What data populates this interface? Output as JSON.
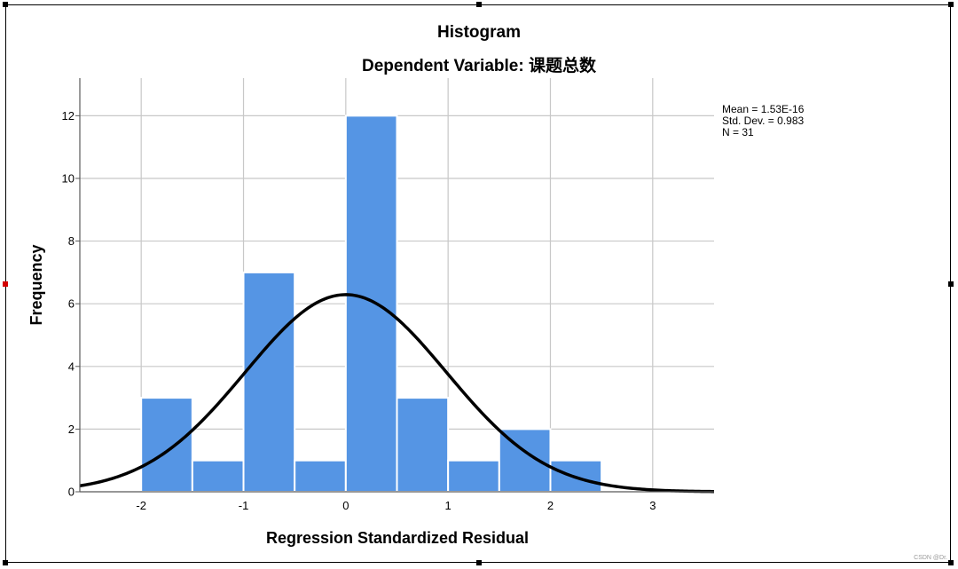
{
  "chart_data": {
    "type": "bar",
    "title": "Histogram",
    "subtitle": "Dependent Variable: 课题总数",
    "xlabel": "Regression Standardized Residual",
    "ylabel": "Frequency",
    "xlim": [
      -2.6,
      3.6
    ],
    "ylim": [
      0,
      13.2
    ],
    "x_ticks": [
      -2,
      -1,
      0,
      1,
      2,
      3
    ],
    "y_ticks": [
      0,
      2,
      4,
      6,
      8,
      10,
      12
    ],
    "grid": true,
    "bins": [
      {
        "x0": -2.0,
        "x1": -1.5,
        "count": 3
      },
      {
        "x0": -1.5,
        "x1": -1.0,
        "count": 1
      },
      {
        "x0": -1.0,
        "x1": -0.5,
        "count": 7
      },
      {
        "x0": -0.5,
        "x1": 0.0,
        "count": 1
      },
      {
        "x0": 0.0,
        "x1": 0.5,
        "count": 12
      },
      {
        "x0": 0.5,
        "x1": 1.0,
        "count": 3
      },
      {
        "x0": 1.0,
        "x1": 1.5,
        "count": 1
      },
      {
        "x0": 1.5,
        "x1": 2.0,
        "count": 2
      },
      {
        "x0": 2.0,
        "x1": 2.5,
        "count": 1
      }
    ],
    "normal_curve": {
      "mean": 1.53e-16,
      "std_dev": 0.983,
      "n": 31,
      "bin_width": 0.5
    },
    "stats_legend": {
      "placement": "top-right",
      "mean_text": "Mean = 1.53E-16",
      "std_text": "Std. Dev. = 0.983",
      "n_text": "N = 31"
    },
    "colors": {
      "bar_fill": "#5595e4",
      "bar_stroke": "#ffffff",
      "curve": "#000000",
      "grid": "#c8c8c8",
      "axis": "#595959"
    }
  },
  "watermark": "CSDN @Dr."
}
